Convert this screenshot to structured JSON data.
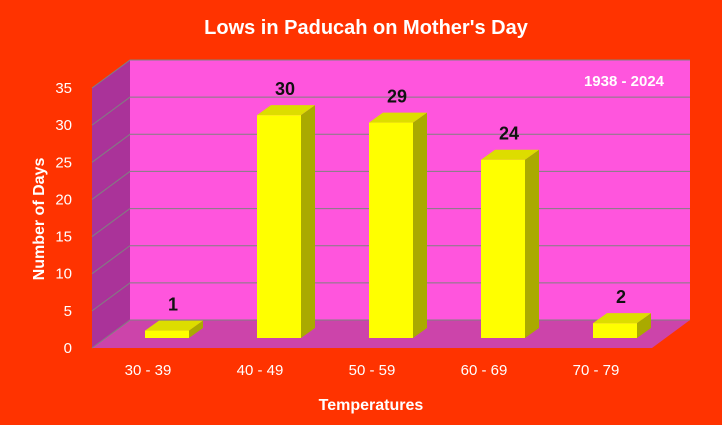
{
  "chart_data": {
    "type": "bar",
    "title": "Lows in Paducah on Mother's Day",
    "annotation": "1938 - 2024",
    "xlabel": "Temperatures",
    "ylabel": "Number of Days",
    "categories": [
      "30 - 39",
      "40 - 49",
      "50 - 59",
      "60 - 69",
      "70 - 79"
    ],
    "values": [
      1,
      30,
      29,
      24,
      2
    ],
    "ylim": [
      0,
      35
    ],
    "yticks": [
      0,
      5,
      10,
      15,
      20,
      25,
      30,
      35
    ],
    "grid": true,
    "legend": "none",
    "colors": {
      "background": "#ff3300",
      "plot_back_wall": "#ff55dd",
      "plot_side_wall": "#aa3399",
      "plot_floor": "#cc44aa",
      "gridline": "#808080",
      "bar_front": "#ffff00",
      "bar_top": "#dddd00",
      "bar_side": "#aaaa00"
    }
  }
}
